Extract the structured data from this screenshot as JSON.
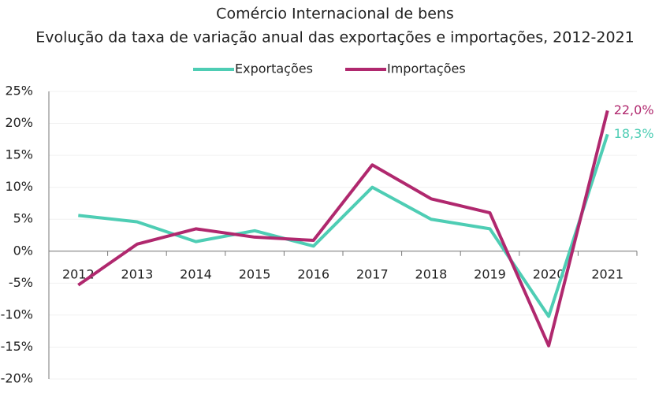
{
  "chart_data": {
    "type": "line",
    "title": "Comércio Internacional de bens",
    "subtitle": "Evolução da taxa de variação anual das exportações e importações, 2012-2021",
    "categories": [
      "2012",
      "2013",
      "2014",
      "2015",
      "2016",
      "2017",
      "2018",
      "2019",
      "2020",
      "2021"
    ],
    "series": [
      {
        "name": "Exportações",
        "color": "#4ecdb4",
        "values": [
          5.6,
          4.6,
          1.5,
          3.2,
          0.8,
          10.0,
          5.0,
          3.5,
          -10.2,
          18.3
        ],
        "value_labels": [
          null,
          null,
          null,
          null,
          null,
          null,
          null,
          null,
          null,
          "18,3%"
        ]
      },
      {
        "name": "Importações",
        "color": "#b0286e",
        "values": [
          -5.3,
          1.1,
          3.5,
          2.2,
          1.7,
          13.5,
          8.2,
          6.0,
          -14.8,
          22.0
        ],
        "value_labels": [
          null,
          null,
          null,
          null,
          null,
          null,
          null,
          null,
          null,
          "22,0%"
        ]
      }
    ],
    "ylim": [
      -20,
      25
    ],
    "yticks": [
      {
        "value": -20,
        "label": "-20%"
      },
      {
        "value": -15,
        "label": "-15%"
      },
      {
        "value": -10,
        "label": "-10%"
      },
      {
        "value": -5,
        "label": "-5%"
      },
      {
        "value": 0,
        "label": "0%"
      },
      {
        "value": 5,
        "label": "5%"
      },
      {
        "value": 10,
        "label": "10%"
      },
      {
        "value": 15,
        "label": "15%"
      },
      {
        "value": 20,
        "label": "20%"
      },
      {
        "value": 25,
        "label": "25%"
      }
    ],
    "grid": true,
    "legend": "top"
  }
}
